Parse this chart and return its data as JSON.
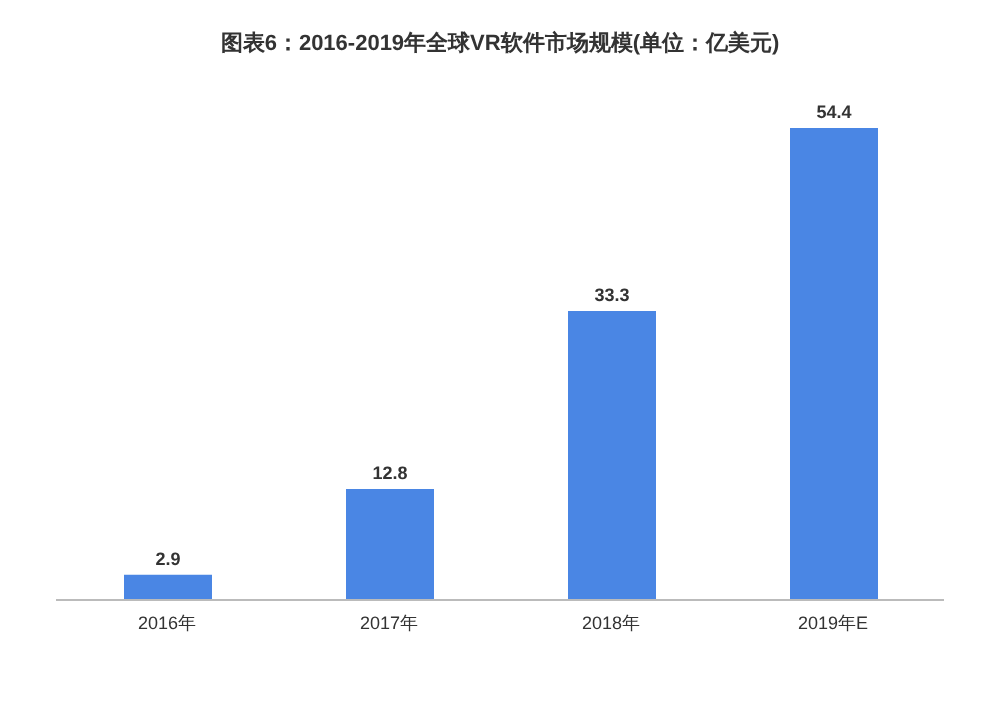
{
  "chart_data": {
    "type": "bar",
    "title": "图表6：2016-2019年全球VR软件市场规模(单位：亿美元)",
    "categories": [
      "2016年",
      "2017年",
      "2018年",
      "2019年E"
    ],
    "values": [
      2.9,
      12.8,
      33.3,
      54.4
    ],
    "color": "#4a86e4",
    "data_labels": true
  }
}
